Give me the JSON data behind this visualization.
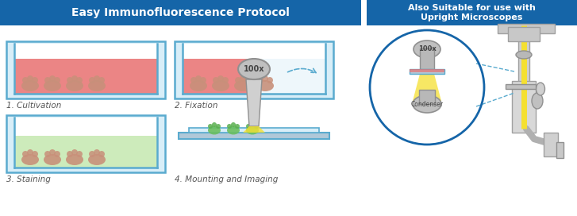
{
  "title_left": "Easy Immunofluorescence Protocol",
  "title_right": "Also Suitable for use with\nUpright Microscopes",
  "title_bg": "#1565a8",
  "title_text_color": "#ffffff",
  "bg_color": "#ffffff",
  "label1": "1. Cultivation",
  "label2": "2. Fixation",
  "label3": "3. Staining",
  "label4": "4. Mounting and Imaging",
  "label_color": "#555555",
  "dish_border": "#5aabcf",
  "dish_fill": "#d8eef8",
  "liquid_red": "#e87070",
  "liquid_green": "#c5e8b0",
  "liquid_light": "#e8f4fa",
  "cell_color": "#c8907a",
  "yellow_light": "#f5e030",
  "blue_circle": "#1565a8",
  "dashed_blue": "#5aabcf",
  "condenser_text": "Condenser",
  "obj_text": "100x"
}
